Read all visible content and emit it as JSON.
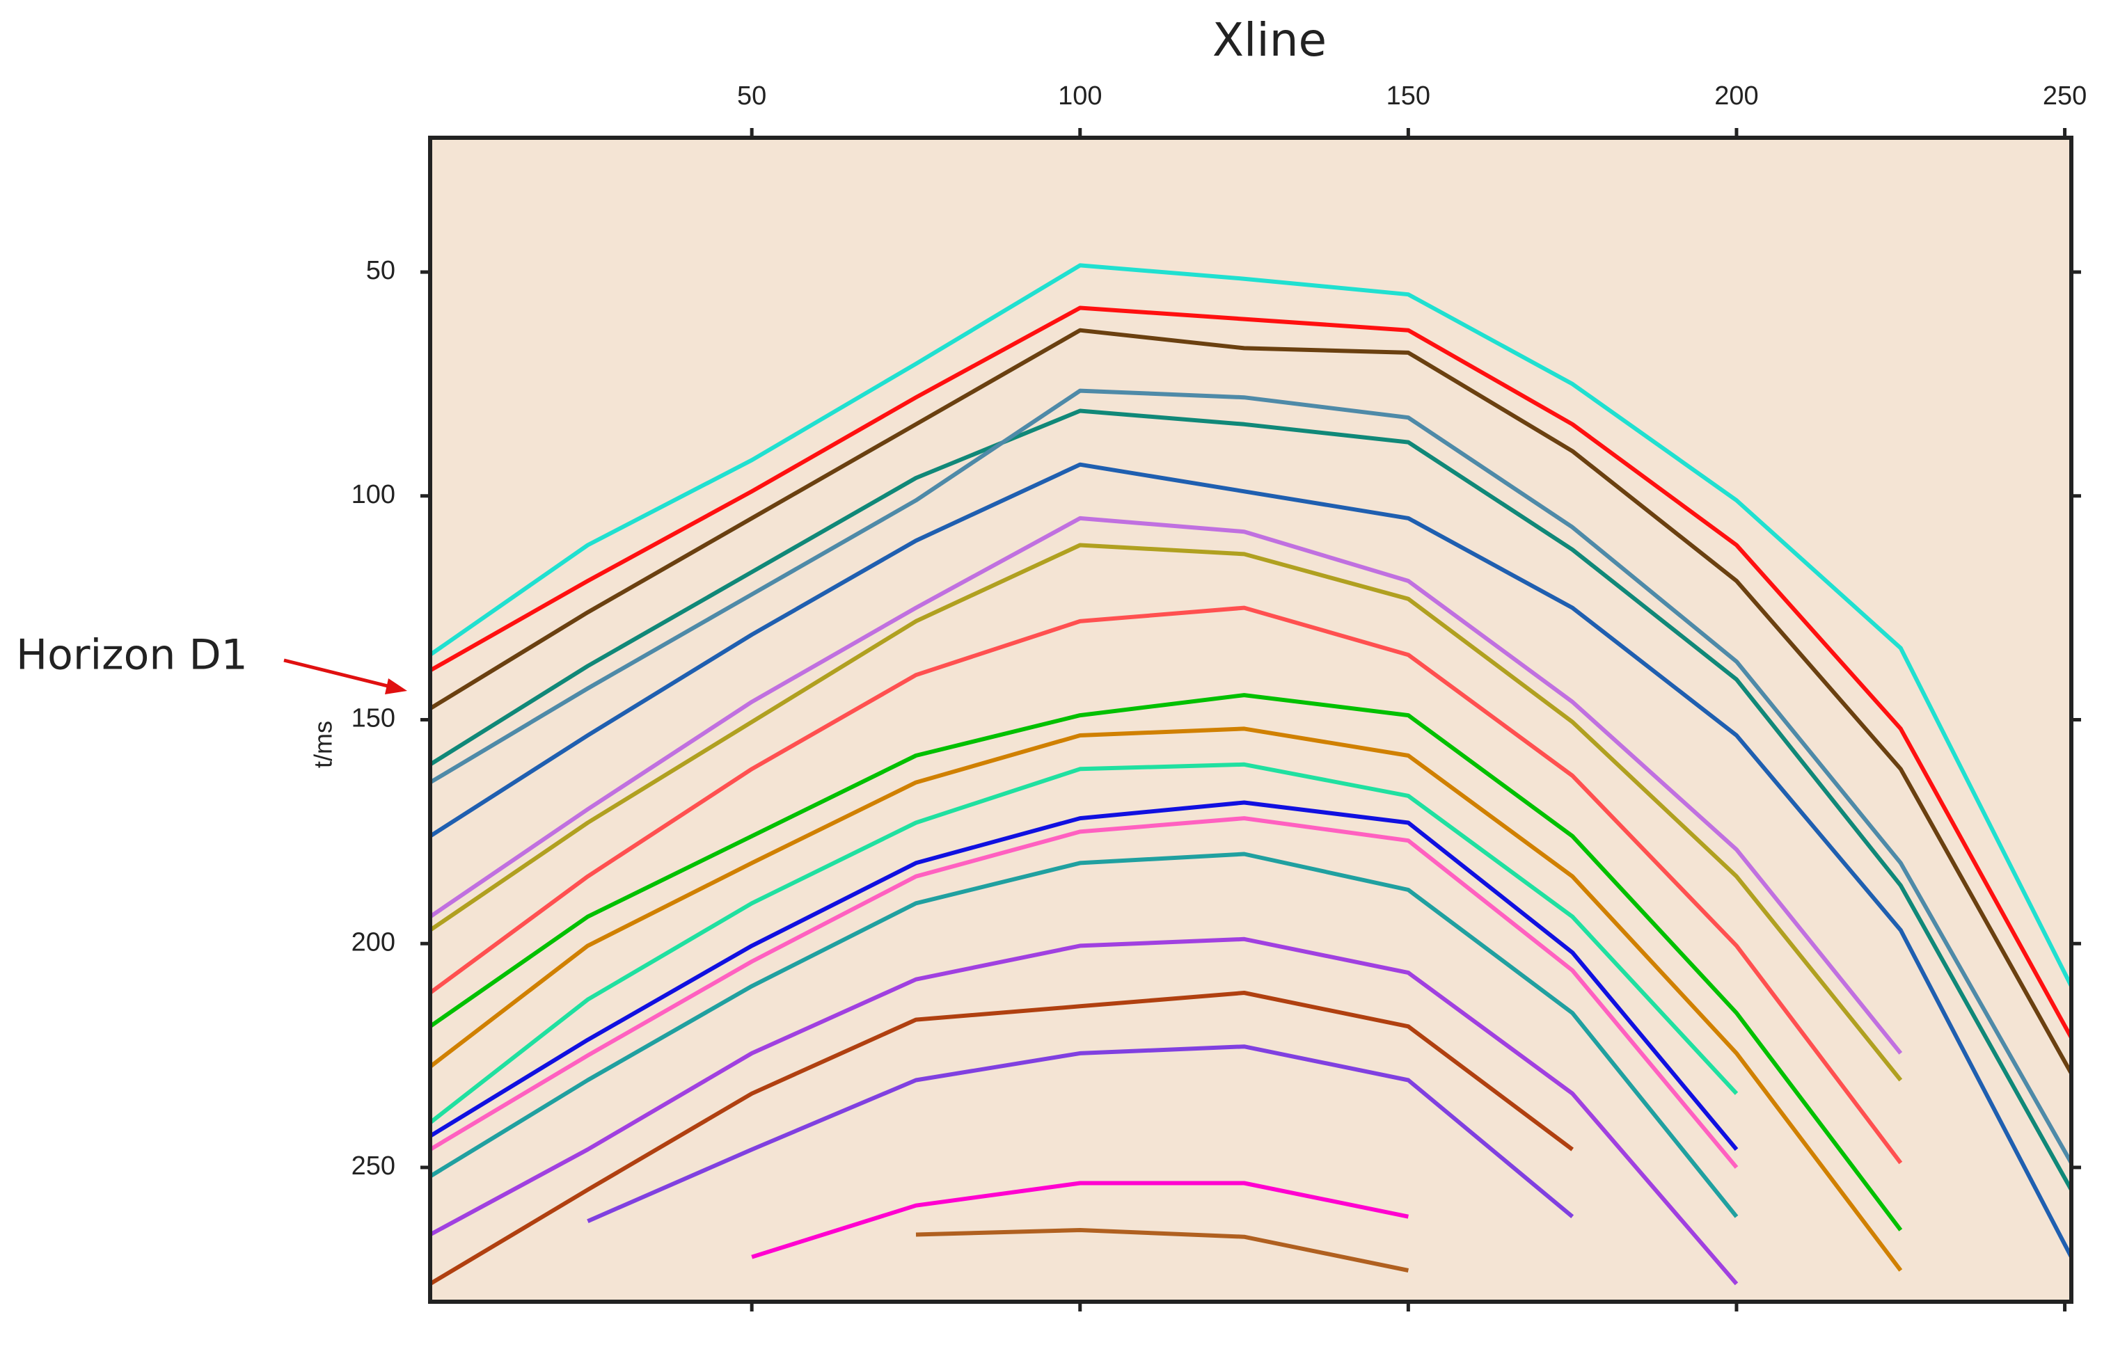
{
  "chart_data": {
    "type": "line",
    "title": "Xline",
    "y_label": "t/ms",
    "annotation": "Horizon D1",
    "xlim": [
      1,
      251
    ],
    "xticks": [
      50,
      100,
      150,
      200,
      250
    ],
    "ylim": [
      20,
      280
    ],
    "yticks": [
      50,
      100,
      150,
      200,
      250
    ],
    "y_reversed": true,
    "background": "#f4e4d4",
    "x": [
      1,
      25,
      50,
      75,
      100,
      125,
      150,
      175,
      200,
      225,
      251
    ],
    "series": [
      {
        "color": "#20e0d0",
        "values": [
          135.5,
          111,
          92,
          70.5,
          48.5,
          51.5,
          55,
          75,
          101,
          134,
          209.5
        ]
      },
      {
        "color": "#ff1010",
        "values": [
          139,
          119,
          99,
          78,
          58,
          60.5,
          63,
          84,
          111,
          152,
          221
        ]
      },
      {
        "color": "#6a4010",
        "values": [
          147.5,
          126,
          105,
          84,
          63,
          67,
          68,
          90,
          119,
          161,
          229
        ]
      },
      {
        "color": "#108878",
        "values": [
          160,
          138,
          117,
          96,
          81,
          84,
          88,
          112,
          141,
          187,
          255
        ]
      },
      {
        "color": "#4e8aa8",
        "values": [
          164,
          143,
          122,
          101,
          76.5,
          78,
          82.5,
          107,
          137,
          182,
          249
        ]
      },
      {
        "color": "#1f5fb0",
        "values": [
          176,
          153.5,
          131,
          110,
          93,
          99,
          105,
          125,
          153.5,
          197,
          270
        ]
      },
      {
        "color": "#c070e0",
        "values": [
          194,
          170,
          146,
          125,
          105,
          108,
          119,
          146,
          179,
          224.5,
          null
        ]
      },
      {
        "color": "#b0a020",
        "values": [
          197,
          173,
          150.5,
          128,
          111,
          113,
          123,
          150.5,
          185,
          230.5,
          null
        ]
      },
      {
        "color": "#ff5050",
        "values": [
          211,
          185,
          161,
          140,
          128,
          125,
          135.5,
          162.5,
          200.5,
          249,
          null
        ]
      },
      {
        "color": "#00c000",
        "values": [
          218.5,
          194,
          176,
          158,
          149,
          144.5,
          149,
          176,
          215.5,
          264,
          null
        ]
      },
      {
        "color": "#d08000",
        "values": [
          227.5,
          200.5,
          182,
          164,
          153.5,
          152,
          158,
          185,
          224.5,
          273,
          null
        ]
      },
      {
        "color": "#20e0a0",
        "values": [
          240,
          212.5,
          191,
          173,
          161,
          160,
          167,
          194,
          233.5,
          null,
          null
        ]
      },
      {
        "color": "#1010e0",
        "values": [
          243,
          221.5,
          200.5,
          182,
          172,
          168.5,
          173,
          202,
          246,
          null,
          null
        ]
      },
      {
        "color": "#ff60c0",
        "values": [
          246,
          225,
          204,
          185,
          175,
          172,
          177,
          206,
          250,
          null,
          null
        ]
      },
      {
        "color": "#20a0a0",
        "values": [
          252,
          230.5,
          209.5,
          191,
          182,
          180,
          188,
          215.5,
          261,
          null,
          null
        ]
      },
      {
        "color": "#a040e0",
        "values": [
          265,
          246,
          224.5,
          208,
          200.5,
          199,
          206.5,
          233.5,
          276,
          null,
          null
        ]
      },
      {
        "color": "#b04010",
        "values": [
          276,
          255,
          233.5,
          217,
          214,
          211,
          218.5,
          246,
          null,
          null,
          null
        ]
      },
      {
        "color": "#8040e0",
        "values": [
          null,
          262,
          246,
          230.5,
          224.5,
          223,
          230.5,
          261,
          null,
          null,
          null
        ]
      },
      {
        "color": "#ff00d0",
        "values": [
          null,
          null,
          270,
          258.5,
          253.5,
          253.5,
          261,
          null,
          null,
          null,
          null
        ]
      },
      {
        "color": "#b06020",
        "values": [
          null,
          null,
          null,
          265,
          264,
          265.5,
          273,
          null,
          null,
          null,
          null
        ]
      }
    ]
  }
}
